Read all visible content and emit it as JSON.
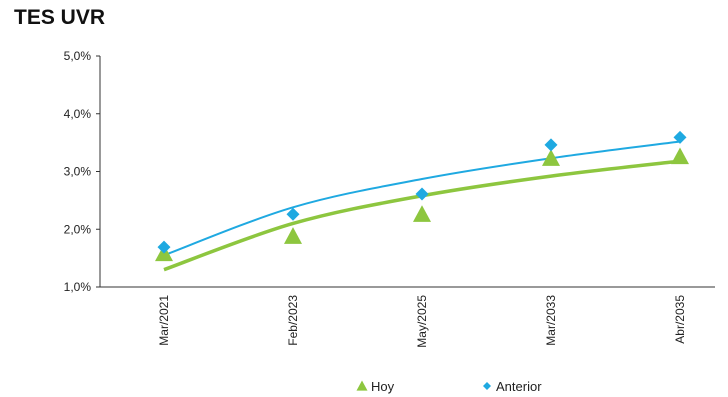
{
  "chart_data": {
    "type": "scatter",
    "title": "TES UVR",
    "categories": [
      "Mar/2021",
      "Feb/2023",
      "May/2025",
      "Mar/2033",
      "Abr/2035"
    ],
    "y_ticks": [
      "1,0%",
      "2,0%",
      "3,0%",
      "4,0%",
      "5,0%"
    ],
    "ylim": [
      1.0,
      5.0
    ],
    "grid": false,
    "legend_position": "bottom",
    "series": [
      {
        "name": "Hoy",
        "marker": "triangle",
        "color": "#8dc63f",
        "values": [
          1.58,
          1.88,
          2.26,
          3.23,
          3.26
        ],
        "trendline": [
          1.3,
          2.1,
          2.58,
          2.92,
          3.18
        ]
      },
      {
        "name": "Anterior",
        "marker": "diamond",
        "color": "#1fa9e1",
        "values": [
          1.69,
          2.26,
          2.61,
          3.46,
          3.59
        ],
        "trendline": [
          1.55,
          2.38,
          2.87,
          3.23,
          3.52
        ]
      }
    ]
  }
}
